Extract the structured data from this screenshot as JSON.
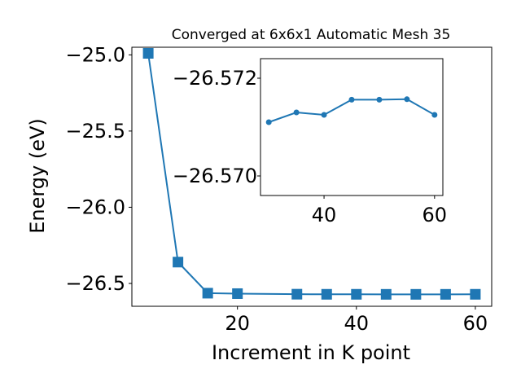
{
  "chart_data": [
    {
      "type": "line",
      "title": "Converged at 6x6x1 Automatic Mesh 35",
      "xlabel": "Increment in K point",
      "ylabel": "Energy (eV)",
      "xlim": [
        2.25,
        62.75
      ],
      "ylim": [
        -26.65,
        -24.95
      ],
      "x_ticks": [
        20,
        40,
        60
      ],
      "x_tick_labels": [
        "20",
        "40",
        "60"
      ],
      "y_ticks": [
        -25.0,
        -25.5,
        -26.0,
        -26.5
      ],
      "y_tick_labels": [
        "−25.0",
        "−25.5",
        "−26.0",
        "−26.5"
      ],
      "marker": "square",
      "color": "#1f77b4",
      "grid": false,
      "series": [
        {
          "x": [
            5,
            10,
            15,
            20,
            30,
            35,
            40,
            45,
            50,
            55,
            60
          ],
          "values": [
            -24.99,
            -26.36,
            -26.564,
            -26.567,
            -26.5707,
            -26.5713,
            -26.5713,
            -26.5716,
            -26.5716,
            -26.5716,
            -26.5713
          ]
        }
      ]
    },
    {
      "type": "line",
      "title": "",
      "role": "inset",
      "xlim": [
        28.5,
        61.5
      ],
      "ylim": [
        -26.5696,
        -26.5724
      ],
      "x_ticks": [
        40,
        60
      ],
      "x_tick_labels": [
        "40",
        "60"
      ],
      "y_ticks": [
        -26.572,
        -26.57
      ],
      "y_tick_labels": [
        "−26.572",
        "−26.570"
      ],
      "marker": "circle",
      "color": "#1f77b4",
      "grid": false,
      "series": [
        {
          "x": [
            30,
            35,
            40,
            45,
            50,
            55,
            60
          ],
          "values": [
            -26.5711,
            -26.5713,
            -26.57125,
            -26.57156,
            -26.57156,
            -26.57157,
            -26.57125
          ]
        }
      ]
    }
  ]
}
